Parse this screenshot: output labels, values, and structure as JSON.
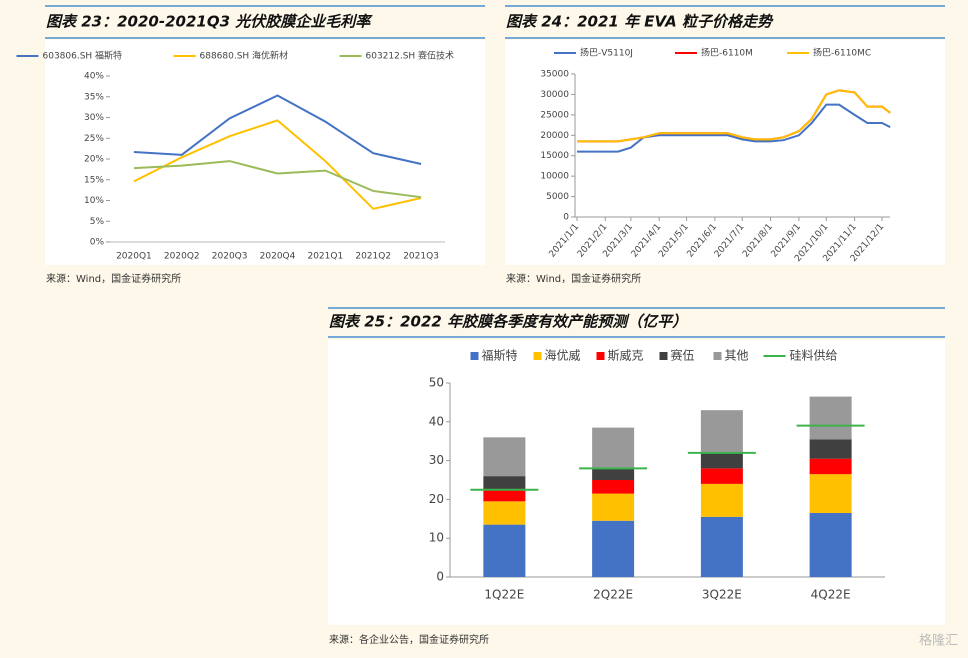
{
  "chart_data": [
    {
      "type": "line",
      "title": "图表 23：2020-2021Q3 光伏胶膜企业毛利率",
      "source": "来源：Wind，国金证券研究所",
      "categories": [
        "2020Q1",
        "2020Q2",
        "2020Q3",
        "2020Q4",
        "2021Q1",
        "2021Q2",
        "2021Q3"
      ],
      "ylim": [
        0,
        40
      ],
      "yticks": [
        {
          "value": 0,
          "label": "0%"
        },
        {
          "value": 5,
          "label": "5%"
        },
        {
          "value": 10,
          "label": "10%"
        },
        {
          "value": 15,
          "label": "15%"
        },
        {
          "value": 20,
          "label": "20%"
        },
        {
          "value": 25,
          "label": "25%"
        },
        {
          "value": 30,
          "label": "30%"
        },
        {
          "value": 35,
          "label": "35%"
        },
        {
          "value": 40,
          "label": "40%"
        }
      ],
      "series": [
        {
          "name": "603806.SH 福斯特",
          "color": "#4472c4",
          "values": [
            21.7,
            21.0,
            29.8,
            35.3,
            29.0,
            21.4,
            18.8
          ]
        },
        {
          "name": "688680.SH 海优新材",
          "color": "#ffc000",
          "values": [
            14.6,
            20.4,
            25.5,
            29.3,
            19.5,
            8.0,
            10.6
          ]
        },
        {
          "name": "603212.SH 赛伍技术",
          "color": "#9bbb59",
          "values": [
            17.8,
            18.4,
            19.5,
            16.5,
            17.2,
            12.3,
            10.8
          ]
        }
      ]
    },
    {
      "type": "step",
      "title": "图表 24：2021 年 EVA 粒子价格走势",
      "source": "来源：Wind，国金证券研究所",
      "xticks": [
        "2021/1/1",
        "2021/2/1",
        "2021/3/1",
        "2021/4/1",
        "2021/5/1",
        "2021/6/1",
        "2021/7/1",
        "2021/8/1",
        "2021/9/1",
        "2021/10/1",
        "2021/11/1",
        "2021/12/1"
      ],
      "x": [
        "2021/1/1",
        "2021/1/15",
        "2021/2/1",
        "2021/2/15",
        "2021/3/1",
        "2021/3/15",
        "2021/4/1",
        "2021/4/15",
        "2021/5/1",
        "2021/5/15",
        "2021/6/1",
        "2021/6/15",
        "2021/7/1",
        "2021/7/15",
        "2021/8/1",
        "2021/8/15",
        "2021/9/1",
        "2021/9/15",
        "2021/10/1",
        "2021/10/15",
        "2021/11/1",
        "2021/11/15",
        "2021/12/1",
        "2021/12/10"
      ],
      "ylim": [
        0,
        35000
      ],
      "yticks": [
        0,
        5000,
        10000,
        15000,
        20000,
        25000,
        30000,
        35000
      ],
      "series": [
        {
          "name": "扬巴-V5110J",
          "color": "#4472c4",
          "values": [
            16000,
            16000,
            16000,
            16000,
            17000,
            19500,
            20000,
            20000,
            20000,
            20000,
            20000,
            20000,
            19000,
            18500,
            18500,
            18800,
            20000,
            23000,
            27500,
            27500,
            25000,
            23000,
            23000,
            22000
          ]
        },
        {
          "name": "扬巴-6110M",
          "color": "#ff0000",
          "values": [
            18500,
            18500,
            18500,
            18500,
            19000,
            19500,
            20500,
            20500,
            20500,
            20500,
            20500,
            20500,
            19500,
            19000,
            19000,
            19500,
            21000,
            24000,
            30000,
            31000,
            30500,
            27000,
            27000,
            25500
          ]
        },
        {
          "name": "扬巴-6110MC",
          "color": "#ffc000",
          "values": [
            18500,
            18500,
            18500,
            18500,
            19000,
            19500,
            20500,
            20500,
            20500,
            20500,
            20500,
            20500,
            19500,
            19000,
            19000,
            19500,
            21000,
            24000,
            30000,
            31000,
            30500,
            27000,
            27000,
            25500
          ]
        }
      ]
    },
    {
      "type": "stacked_bar",
      "title": "图表 25：2022 年胶膜各季度有效产能预测（亿平）",
      "source": "来源：各企业公告，国金证券研究所",
      "categories": [
        "1Q22E",
        "2Q22E",
        "3Q22E",
        "4Q22E"
      ],
      "ylim": [
        0,
        50
      ],
      "yticks": [
        0,
        10,
        20,
        30,
        40,
        50
      ],
      "series": [
        {
          "name": "福斯特",
          "color": "#4472c4",
          "values": [
            13.5,
            14.5,
            15.5,
            16.5
          ]
        },
        {
          "name": "海优威",
          "color": "#ffc000",
          "values": [
            6,
            7,
            8.5,
            10
          ]
        },
        {
          "name": "斯威克",
          "color": "#ff0000",
          "values": [
            3,
            3.5,
            4,
            4
          ]
        },
        {
          "name": "赛伍",
          "color": "#404040",
          "values": [
            3.5,
            3,
            4,
            5
          ]
        },
        {
          "name": "其他",
          "color": "#999999",
          "values": [
            10,
            10.5,
            11,
            11
          ]
        },
        {
          "name": "硅料供给",
          "color": "#3cb44b",
          "kind": "line",
          "values": [
            22.5,
            28,
            32,
            39
          ]
        }
      ]
    }
  ],
  "watermark": "格隆汇"
}
